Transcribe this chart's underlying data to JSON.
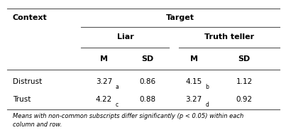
{
  "title_col1": "Context",
  "title_col_group": "Target",
  "subgroup1": "Liar",
  "subgroup2": "Truth teller",
  "col_headers": [
    "M",
    "SD",
    "M",
    "SD"
  ],
  "rows": [
    {
      "context": "Distrust",
      "liar_m": "3.27",
      "liar_m_sub": "a",
      "liar_sd": "0.86",
      "truth_m": "4.15",
      "truth_m_sub": "b",
      "truth_sd": "1.12"
    },
    {
      "context": "Trust",
      "liar_m": "4.22",
      "liar_m_sub": "c",
      "liar_sd": "0.88",
      "truth_m": "3.27",
      "truth_m_sub": "d",
      "truth_sd": "0.92"
    }
  ],
  "footnote": "Means with non-common subscripts differ significantly (p < 0.05) within each\ncolumn and row.",
  "bg_color": "#ffffff",
  "text_color": "#000000",
  "line_color": "#555555"
}
